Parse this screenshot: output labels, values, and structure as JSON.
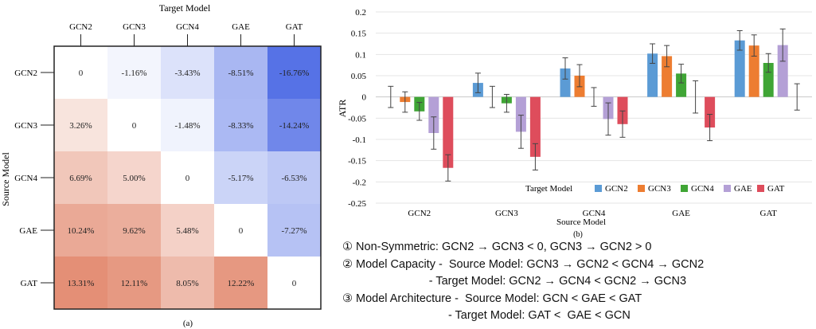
{
  "heatmap": {
    "title": "Target Model",
    "y_title": "Source Model",
    "caption": "(a)",
    "columns": [
      "GCN2",
      "GCN3",
      "GCN4",
      "GAE",
      "GAT"
    ],
    "rows": [
      "GCN2",
      "GCN3",
      "GCN4",
      "GAE",
      "GAT"
    ],
    "labels": [
      [
        "0",
        "-1.16%",
        "-3.43%",
        "-8.51%",
        "-16.76%"
      ],
      [
        "3.26%",
        "0",
        "-1.48%",
        "-8.33%",
        "-14.24%"
      ],
      [
        "6.69%",
        "5.00%",
        "0",
        "-5.17%",
        "-6.53%"
      ],
      [
        "10.24%",
        "9.62%",
        "5.48%",
        "0",
        "-7.27%"
      ],
      [
        "13.31%",
        "12.11%",
        "8.05%",
        "12.22%",
        "0"
      ]
    ]
  },
  "chart_data": [
    {
      "type": "heatmap",
      "title": "Target Model",
      "xlabel": "Target Model",
      "ylabel": "Source Model",
      "x": [
        "GCN2",
        "GCN3",
        "GCN4",
        "GAE",
        "GAT"
      ],
      "y": [
        "GCN2",
        "GCN3",
        "GCN4",
        "GAE",
        "GAT"
      ],
      "values": [
        [
          0,
          -1.16,
          -3.43,
          -8.51,
          -16.76
        ],
        [
          3.26,
          0,
          -1.48,
          -8.33,
          -14.24
        ],
        [
          6.69,
          5.0,
          0,
          -5.17,
          -6.53
        ],
        [
          10.24,
          9.62,
          5.48,
          0,
          -7.27
        ],
        [
          13.31,
          12.11,
          8.05,
          12.22,
          0
        ]
      ]
    },
    {
      "type": "bar",
      "title": "",
      "xlabel": "Source Model",
      "ylabel": "ATR",
      "caption": "(b)",
      "legend_title": "Target Model",
      "categories": [
        "GCN2",
        "GCN3",
        "GCN4",
        "GAE",
        "GAT"
      ],
      "ylim": [
        -0.25,
        0.2
      ],
      "yticks": [
        "0.2",
        "0.15",
        "0.1",
        "0.05",
        "0",
        "-0.05",
        "-0.1",
        "-0.15",
        "-0.2",
        "-0.25"
      ],
      "series": [
        {
          "name": "GCN2",
          "color": "#5b9bd5",
          "values": [
            0,
            0.033,
            0.067,
            0.102,
            0.133
          ],
          "errors": [
            0.025,
            0.023,
            0.025,
            0.023,
            0.023
          ]
        },
        {
          "name": "GCN3",
          "color": "#ed7d31",
          "values": [
            -0.012,
            0,
            0.05,
            0.096,
            0.121
          ],
          "errors": [
            0.024,
            0.025,
            0.026,
            0.025,
            0.025
          ]
        },
        {
          "name": "GCN4",
          "color": "#3fa535",
          "values": [
            -0.034,
            -0.015,
            0,
            0.055,
            0.08
          ],
          "errors": [
            0.021,
            0.021,
            0.022,
            0.022,
            0.022
          ]
        },
        {
          "name": "GAE",
          "color": "#b4a0d6",
          "values": [
            -0.085,
            -0.082,
            -0.052,
            0,
            0.122
          ],
          "errors": [
            0.038,
            0.039,
            0.038,
            0.038,
            0.038
          ]
        },
        {
          "name": "GAT",
          "color": "#de4d5c",
          "values": [
            -0.167,
            -0.141,
            -0.064,
            -0.072,
            0
          ],
          "errors": [
            0.031,
            0.031,
            0.031,
            0.031,
            0.031
          ]
        }
      ]
    }
  ],
  "notes": [
    "① Non-Symmetric: GCN2 → GCN3 < 0, GCN3 → GCN2 > 0",
    "② Model Capacity -  Source Model: GCN3 → GCN2 < GCN4 → GCN2",
    "                           - Target Model: GCN2 → GCN4 < GCN2 → GCN3",
    "③ Model Architecture -  Source Model: GCN < GAE < GAT",
    "                                 - Target Model: GAT <  GAE < GCN"
  ]
}
